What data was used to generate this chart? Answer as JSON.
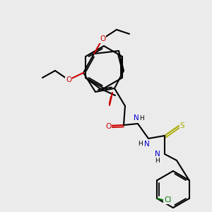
{
  "background_color": "#ebebeb",
  "bond_color": "#000000",
  "bond_width": 1.5,
  "atom_colors": {
    "O": "#cc0000",
    "N": "#0000cc",
    "S": "#aaaa00",
    "Cl": "#007700",
    "C": "#000000",
    "H": "#000000"
  },
  "font_size": 7.5,
  "font_size_small": 6.5
}
